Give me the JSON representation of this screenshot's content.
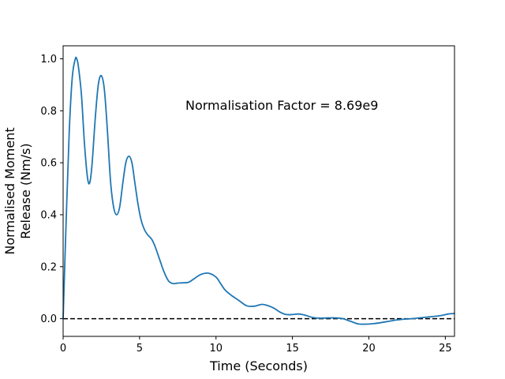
{
  "chart_data": {
    "type": "line",
    "xlabel": "Time (Seconds)",
    "ylabel_lines": [
      "Normalised Moment",
      "Release (Nm/s)"
    ],
    "annotation": "Normalisation Factor = 8.69e9",
    "xlim": [
      0,
      25.6
    ],
    "ylim": [
      -0.068,
      1.05
    ],
    "xticks": [
      0,
      5,
      10,
      15,
      20,
      25
    ],
    "yticks": [
      0.0,
      0.2,
      0.4,
      0.6,
      0.8,
      1.0
    ],
    "xtick_labels": [
      "0",
      "5",
      "10",
      "15",
      "20",
      "25"
    ],
    "ytick_labels": [
      "0.0",
      "0.2",
      "0.4",
      "0.6",
      "0.8",
      "1.0"
    ],
    "grid": false,
    "line_color": "#1f77b4",
    "reference_line": {
      "y": 0.0,
      "style": "dashed",
      "color": "#000000"
    },
    "series": [
      {
        "x": [
          0,
          0.2,
          0.4,
          0.6,
          0.8,
          0.9,
          1.0,
          1.2,
          1.4,
          1.6,
          1.75,
          1.9,
          2.1,
          2.3,
          2.5,
          2.7,
          2.9,
          3.1,
          3.3,
          3.5,
          3.7,
          3.9,
          4.1,
          4.3,
          4.5,
          4.7,
          4.9,
          5.1,
          5.3,
          5.5,
          5.8,
          6.0,
          6.3,
          6.6,
          6.9,
          7.2,
          7.5,
          7.8,
          8.2,
          8.6,
          9.0,
          9.5,
          10.0,
          10.3,
          10.6,
          11.0,
          11.5,
          12.0,
          12.5,
          13.0,
          13.4,
          13.8,
          14.2,
          14.6,
          15.0,
          15.4,
          15.8,
          16.3,
          16.8,
          17.3,
          17.8,
          18.3,
          18.8,
          19.3,
          19.8,
          20.3,
          20.8,
          21.3,
          21.8,
          22.3,
          22.8,
          23.3,
          23.8,
          24.3,
          24.8,
          25.2,
          25.6
        ],
        "y": [
          0.0,
          0.38,
          0.72,
          0.93,
          1.0,
          0.998,
          0.97,
          0.86,
          0.67,
          0.54,
          0.525,
          0.6,
          0.77,
          0.9,
          0.935,
          0.88,
          0.72,
          0.53,
          0.43,
          0.4,
          0.43,
          0.52,
          0.6,
          0.625,
          0.6,
          0.52,
          0.44,
          0.38,
          0.345,
          0.325,
          0.305,
          0.28,
          0.23,
          0.18,
          0.145,
          0.135,
          0.137,
          0.138,
          0.14,
          0.155,
          0.17,
          0.175,
          0.16,
          0.135,
          0.11,
          0.09,
          0.07,
          0.05,
          0.048,
          0.055,
          0.05,
          0.04,
          0.025,
          0.016,
          0.016,
          0.018,
          0.014,
          0.005,
          0.002,
          0.003,
          0.003,
          0.0,
          -0.01,
          -0.02,
          -0.021,
          -0.019,
          -0.015,
          -0.01,
          -0.005,
          -0.002,
          0.0,
          0.003,
          0.006,
          0.009,
          0.013,
          0.018,
          0.02
        ]
      }
    ]
  }
}
